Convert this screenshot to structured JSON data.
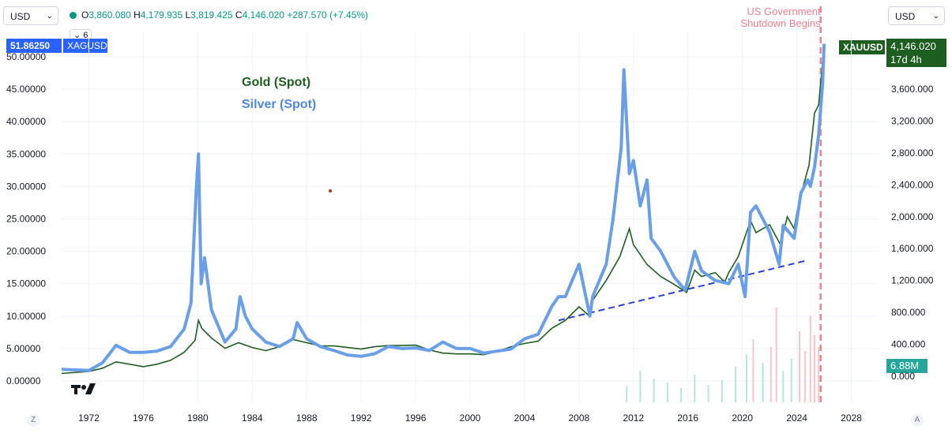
{
  "toolbar": {
    "left_currency": "USD",
    "right_currency": "USD",
    "ohlc": {
      "o_label": "O",
      "o": "3,860.080",
      "h_label": "H",
      "h": "4,179.935",
      "l_label": "L",
      "l": "3,819.425",
      "c_label": "C",
      "c": "4,146.020",
      "change": "+287.570 (+7.45%)"
    },
    "collapse_count": "6"
  },
  "badges": {
    "silver_price": "51.86250",
    "silver_symbol": "XAGUSD",
    "gold_symbol": "XAUUSD",
    "gold_price": "4,146.020",
    "countdown": "17d 4h",
    "volume": "6.88M"
  },
  "annotation": {
    "line1": "US Government",
    "line2": "Shutdown Begins"
  },
  "corner": {
    "left": "Z",
    "right": "A"
  },
  "colors": {
    "gold": "#1e5e20",
    "silver": "#6a9fe8",
    "trend": "#2a3ed8",
    "annotation": "#f08090",
    "up": "#089981",
    "down": "#f23645"
  },
  "chart_data": {
    "type": "line",
    "title": "",
    "legend": [
      "Gold (Spot)",
      "Silver (Spot)"
    ],
    "x_ticks": [
      "1972",
      "1976",
      "1980",
      "1984",
      "1988",
      "1992",
      "1996",
      "2000",
      "2004",
      "2008",
      "2012",
      "2016",
      "2020",
      "2024",
      "2028"
    ],
    "left_axis": {
      "ticks": [
        "50.00000",
        "45.00000",
        "40.00000",
        "35.00000",
        "30.00000",
        "25.00000",
        "20.00000",
        "15.00000",
        "10.00000",
        "5.00000",
        "0.00000"
      ],
      "range": [
        0,
        52
      ]
    },
    "right_axis": {
      "ticks": [
        "3,600.000",
        "3,200.000",
        "2,800.000",
        "2,400.000",
        "2,000.000",
        "1,600.000",
        "1,200.000",
        "800.000",
        "400.000",
        "0.000"
      ],
      "range": [
        0,
        4400
      ]
    },
    "series": [
      {
        "name": "Silver (Spot)",
        "axis": "left",
        "points": [
          [
            1970,
            1.8
          ],
          [
            1972,
            1.6
          ],
          [
            1973,
            2.8
          ],
          [
            1974,
            5.5
          ],
          [
            1975,
            4.4
          ],
          [
            1976,
            4.4
          ],
          [
            1977,
            4.6
          ],
          [
            1978,
            5.3
          ],
          [
            1979,
            8
          ],
          [
            1979.5,
            12
          ],
          [
            1979.9,
            30
          ],
          [
            1980.05,
            35
          ],
          [
            1980.25,
            15
          ],
          [
            1980.5,
            19
          ],
          [
            1981,
            11
          ],
          [
            1982,
            6
          ],
          [
            1982.8,
            8
          ],
          [
            1983.1,
            13
          ],
          [
            1983.5,
            10
          ],
          [
            1984,
            8
          ],
          [
            1985,
            6
          ],
          [
            1986,
            5.3
          ],
          [
            1987,
            6.5
          ],
          [
            1987.3,
            9
          ],
          [
            1988,
            6.5
          ],
          [
            1989,
            5.3
          ],
          [
            1990,
            4.7
          ],
          [
            1991,
            4
          ],
          [
            1992,
            3.8
          ],
          [
            1993,
            4.2
          ],
          [
            1994,
            5.3
          ],
          [
            1995,
            5
          ],
          [
            1996,
            5.1
          ],
          [
            1997,
            4.7
          ],
          [
            1998,
            6
          ],
          [
            1999,
            5
          ],
          [
            2000,
            5
          ],
          [
            2001,
            4.3
          ],
          [
            2002,
            4.6
          ],
          [
            2003,
            4.9
          ],
          [
            2004,
            6.5
          ],
          [
            2005,
            7.2
          ],
          [
            2006,
            11.5
          ],
          [
            2006.5,
            13
          ],
          [
            2007,
            13
          ],
          [
            2008,
            18
          ],
          [
            2008.8,
            10
          ],
          [
            2009,
            13
          ],
          [
            2010,
            18
          ],
          [
            2010.5,
            25
          ],
          [
            2011.1,
            36
          ],
          [
            2011.3,
            48
          ],
          [
            2011.7,
            32
          ],
          [
            2012,
            34
          ],
          [
            2012.5,
            27
          ],
          [
            2013,
            31
          ],
          [
            2013.3,
            22
          ],
          [
            2014,
            20
          ],
          [
            2015,
            16
          ],
          [
            2015.8,
            14
          ],
          [
            2016.5,
            20
          ],
          [
            2017,
            17
          ],
          [
            2018,
            15.5
          ],
          [
            2019,
            15
          ],
          [
            2019.7,
            18
          ],
          [
            2020.2,
            13
          ],
          [
            2020.6,
            26
          ],
          [
            2021,
            27
          ],
          [
            2021.5,
            25
          ],
          [
            2022,
            23
          ],
          [
            2022.7,
            18
          ],
          [
            2023,
            24
          ],
          [
            2023.8,
            22
          ],
          [
            2024.3,
            29
          ],
          [
            2024.8,
            31
          ],
          [
            2025,
            30
          ],
          [
            2025.3,
            33
          ],
          [
            2025.6,
            38
          ],
          [
            2025.9,
            46
          ],
          [
            2026,
            52
          ]
        ]
      },
      {
        "name": "Gold (Spot)",
        "axis": "right",
        "points": [
          [
            1970,
            35
          ],
          [
            1972,
            60
          ],
          [
            1973,
            100
          ],
          [
            1974,
            180
          ],
          [
            1975,
            150
          ],
          [
            1976,
            120
          ],
          [
            1977,
            150
          ],
          [
            1978,
            200
          ],
          [
            1979,
            300
          ],
          [
            1979.8,
            450
          ],
          [
            1980.05,
            700
          ],
          [
            1980.3,
            600
          ],
          [
            1981,
            480
          ],
          [
            1982,
            350
          ],
          [
            1983,
            420
          ],
          [
            1984,
            360
          ],
          [
            1985,
            320
          ],
          [
            1986,
            370
          ],
          [
            1987,
            460
          ],
          [
            1988,
            420
          ],
          [
            1989,
            380
          ],
          [
            1990,
            380
          ],
          [
            1991,
            360
          ],
          [
            1992,
            340
          ],
          [
            1993,
            370
          ],
          [
            1994,
            385
          ],
          [
            1995,
            385
          ],
          [
            1996,
            390
          ],
          [
            1997,
            330
          ],
          [
            1998,
            290
          ],
          [
            1999,
            280
          ],
          [
            2000,
            280
          ],
          [
            2001,
            270
          ],
          [
            2002,
            310
          ],
          [
            2003,
            370
          ],
          [
            2004,
            410
          ],
          [
            2005,
            440
          ],
          [
            2006,
            600
          ],
          [
            2007,
            700
          ],
          [
            2008,
            870
          ],
          [
            2008.8,
            750
          ],
          [
            2009,
            950
          ],
          [
            2010,
            1200
          ],
          [
            2011,
            1500
          ],
          [
            2011.7,
            1850
          ],
          [
            2012,
            1650
          ],
          [
            2013,
            1400
          ],
          [
            2014,
            1250
          ],
          [
            2015,
            1150
          ],
          [
            2015.9,
            1050
          ],
          [
            2016.5,
            1330
          ],
          [
            2017,
            1250
          ],
          [
            2018,
            1300
          ],
          [
            2018.7,
            1180
          ],
          [
            2019,
            1300
          ],
          [
            2019.7,
            1500
          ],
          [
            2020.6,
            1950
          ],
          [
            2021,
            1800
          ],
          [
            2021.5,
            1850
          ],
          [
            2022,
            1900
          ],
          [
            2022.8,
            1650
          ],
          [
            2023.3,
            2000
          ],
          [
            2023.8,
            1850
          ],
          [
            2024,
            2050
          ],
          [
            2024.5,
            2400
          ],
          [
            2024.9,
            2650
          ],
          [
            2025.3,
            3300
          ],
          [
            2025.6,
            3400
          ],
          [
            2026,
            4146
          ]
        ]
      }
    ]
  }
}
